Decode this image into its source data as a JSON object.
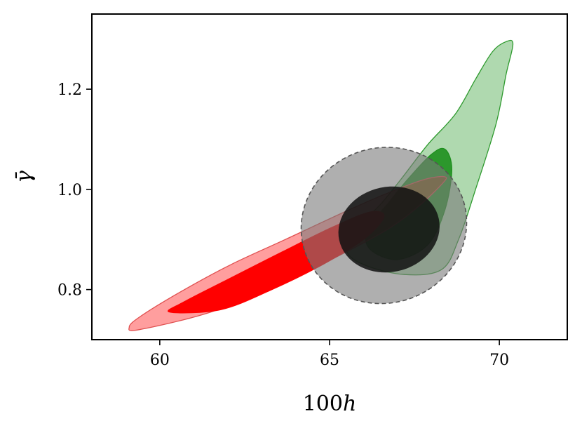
{
  "chart_data": {
    "type": "contour",
    "xlabel_prefix": "100",
    "xlabel_var": "h",
    "ylabel": "γ̄",
    "xlim": [
      58,
      72
    ],
    "ylim": [
      0.7,
      1.35
    ],
    "xticks": [
      {
        "value": 60,
        "label": "60"
      },
      {
        "value": 65,
        "label": "65"
      },
      {
        "value": 70,
        "label": "70"
      }
    ],
    "yticks": [
      {
        "value": 0.8,
        "label": "0.8"
      },
      {
        "value": 1.0,
        "label": "1.0"
      },
      {
        "value": 1.2,
        "label": "1.2"
      }
    ],
    "grid": false,
    "contours": [
      {
        "name": "",
        "level": "outer",
        "color": "#2e9a2e",
        "fill_opacity": 0.38,
        "stroke": "#2e9a2e",
        "dashed": false,
        "points": [
          [
            65.5,
            0.88
          ],
          [
            66,
            0.85
          ],
          [
            67.2,
            0.83
          ],
          [
            68.3,
            0.84
          ],
          [
            68.8,
            0.9
          ],
          [
            69.3,
            1.0
          ],
          [
            69.9,
            1.13
          ],
          [
            70.2,
            1.23
          ],
          [
            70.4,
            1.29
          ],
          [
            70.2,
            1.295
          ],
          [
            69.8,
            1.275
          ],
          [
            69.3,
            1.22
          ],
          [
            68.7,
            1.15
          ],
          [
            67.9,
            1.09
          ],
          [
            67.1,
            1.02
          ],
          [
            66.5,
            0.97
          ],
          [
            65.9,
            0.93
          ]
        ]
      },
      {
        "name": "",
        "level": "inner",
        "color": "#1e8f1e",
        "fill_opacity": 0.9,
        "stroke": "#1e8f1e",
        "dashed": false,
        "points": [
          [
            66.2,
            0.88
          ],
          [
            67.0,
            0.86
          ],
          [
            67.9,
            0.89
          ],
          [
            68.4,
            0.96
          ],
          [
            68.6,
            1.04
          ],
          [
            68.4,
            1.08
          ],
          [
            68.0,
            1.07
          ],
          [
            67.3,
            1.02
          ],
          [
            66.7,
            0.97
          ],
          [
            66.1,
            0.92
          ]
        ]
      },
      {
        "name": "",
        "level": "outer",
        "color": "#ff0000",
        "fill_opacity": 0.38,
        "stroke": "#e05050",
        "dashed": false,
        "points": [
          [
            59.4,
            0.72
          ],
          [
            61.5,
            0.755
          ],
          [
            63.5,
            0.81
          ],
          [
            65.2,
            0.865
          ],
          [
            66.7,
            0.92
          ],
          [
            67.6,
            0.965
          ],
          [
            68.3,
            1.01
          ],
          [
            68.4,
            1.025
          ],
          [
            67.8,
            1.02
          ],
          [
            66.8,
            0.995
          ],
          [
            65.6,
            0.96
          ],
          [
            63.7,
            0.9
          ],
          [
            62.1,
            0.85
          ],
          [
            60.6,
            0.795
          ],
          [
            59.4,
            0.745
          ],
          [
            59.1,
            0.725
          ]
        ]
      },
      {
        "name": "",
        "level": "inner",
        "color": "#ff0000",
        "fill_opacity": 1.0,
        "stroke": "#ff0000",
        "dashed": false,
        "points": [
          [
            60.3,
            0.755
          ],
          [
            61.8,
            0.76
          ],
          [
            63.3,
            0.8
          ],
          [
            64.8,
            0.85
          ],
          [
            66.0,
            0.9
          ],
          [
            66.6,
            0.945
          ],
          [
            66.2,
            0.955
          ],
          [
            65.1,
            0.925
          ],
          [
            63.6,
            0.875
          ],
          [
            62.0,
            0.82
          ],
          [
            60.7,
            0.775
          ]
        ]
      },
      {
        "name": "",
        "level": "outer",
        "color": "#7a7a7a",
        "fill_opacity": 0.6,
        "stroke": "#555555",
        "dashed": true,
        "ellipse": {
          "cx": 66.6,
          "cy": 0.928,
          "rx": 2.45,
          "ry": 0.155,
          "angle_deg": 17
        }
      },
      {
        "name": "",
        "level": "inner",
        "color": "#111111",
        "fill_opacity": 0.85,
        "stroke": "none",
        "dashed": false,
        "ellipse": {
          "cx": 66.75,
          "cy": 0.92,
          "rx": 1.5,
          "ry": 0.085,
          "angle_deg": 12
        }
      }
    ]
  }
}
